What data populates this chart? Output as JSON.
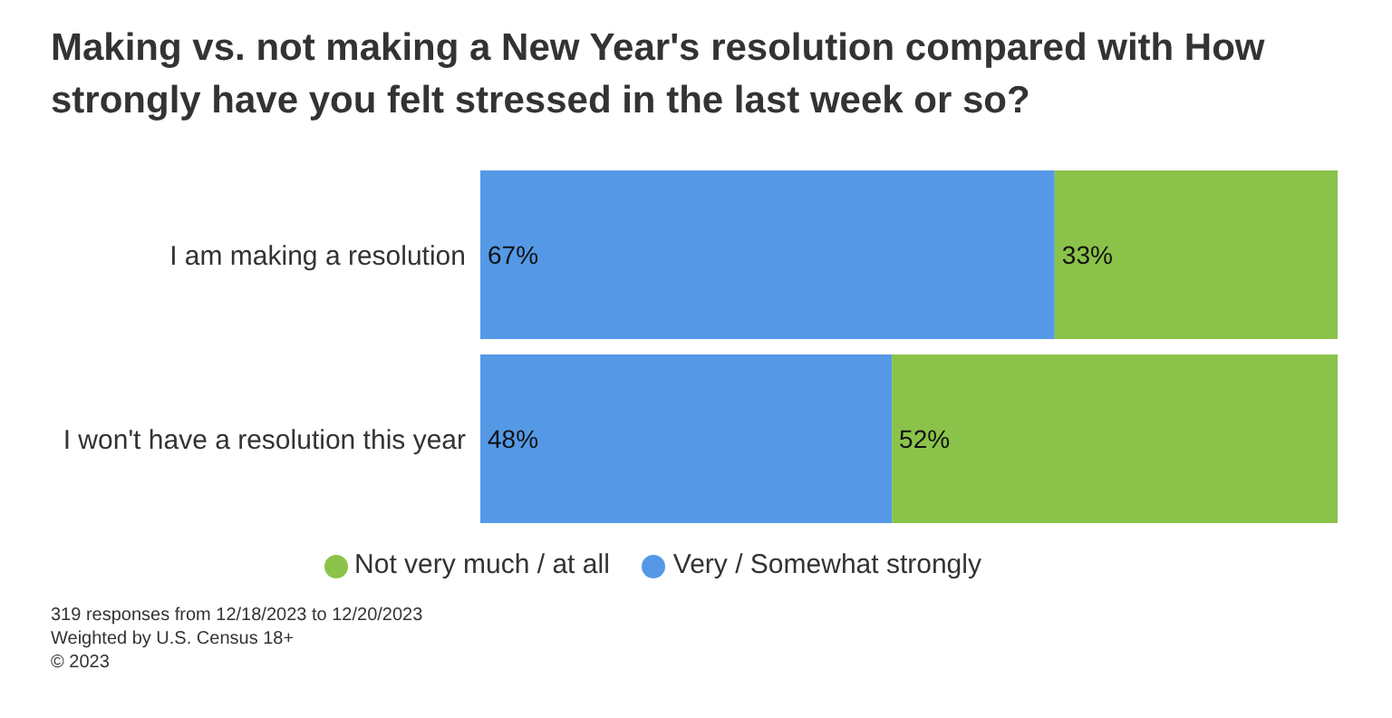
{
  "chart_data": {
    "type": "bar",
    "orientation": "horizontal",
    "stacked": true,
    "title": "Making vs. not making a New Year's resolution compared with How strongly have you felt stressed in the last week or so?",
    "categories": [
      "I am making a resolution",
      "I won't have a resolution this year"
    ],
    "series": [
      {
        "name": "Very / Somewhat strongly",
        "color": "#5599e6",
        "values": [
          67,
          48
        ],
        "value_labels": [
          "67%",
          "48%"
        ]
      },
      {
        "name": "Not very much / at all",
        "color": "#8bc34a",
        "values": [
          33,
          52
        ],
        "value_labels": [
          "33%",
          "52%"
        ]
      }
    ],
    "xlim": [
      0,
      100
    ],
    "tick_labels": "y",
    "legend": "bottom",
    "annotations": [
      "319 responses from 12/18/2023 to 12/20/2023",
      "Weighted by U.S. Census 18+",
      "© 2023"
    ]
  }
}
